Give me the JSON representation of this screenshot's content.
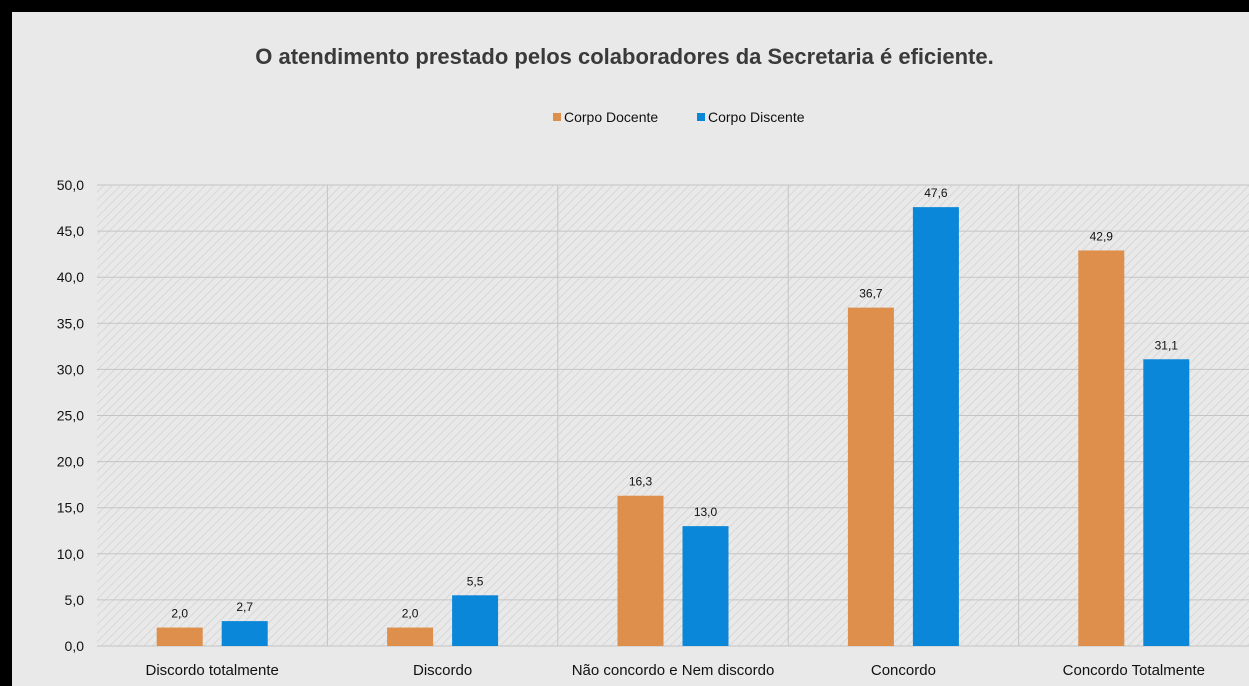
{
  "chart_data": {
    "type": "bar",
    "title": "O atendimento prestado pelos colaboradores da Secretaria é eficiente.",
    "categories": [
      "Discordo totalmente",
      "Discordo",
      "Não concordo e Nem discordo",
      "Concordo",
      "Concordo Totalmente"
    ],
    "series": [
      {
        "name": "Corpo Docente",
        "values": [
          2.0,
          2.0,
          16.3,
          36.7,
          42.9
        ],
        "labels": [
          "2,0",
          "2,0",
          "16,3",
          "36,7",
          "42,9"
        ],
        "color": "#dd8f4b"
      },
      {
        "name": "Corpo Discente",
        "values": [
          2.7,
          5.5,
          13.0,
          47.6,
          31.1
        ],
        "labels": [
          "2,7",
          "5,5",
          "13,0",
          "47,6",
          "31,1"
        ],
        "color": "#0a87d8"
      }
    ],
    "y_ticks": [
      "0,0",
      "5,0",
      "10,0",
      "15,0",
      "20,0",
      "25,0",
      "30,0",
      "35,0",
      "40,0",
      "45,0",
      "50,0"
    ],
    "ylim": [
      0,
      50
    ],
    "grid": true,
    "legend_position": "top-center"
  }
}
